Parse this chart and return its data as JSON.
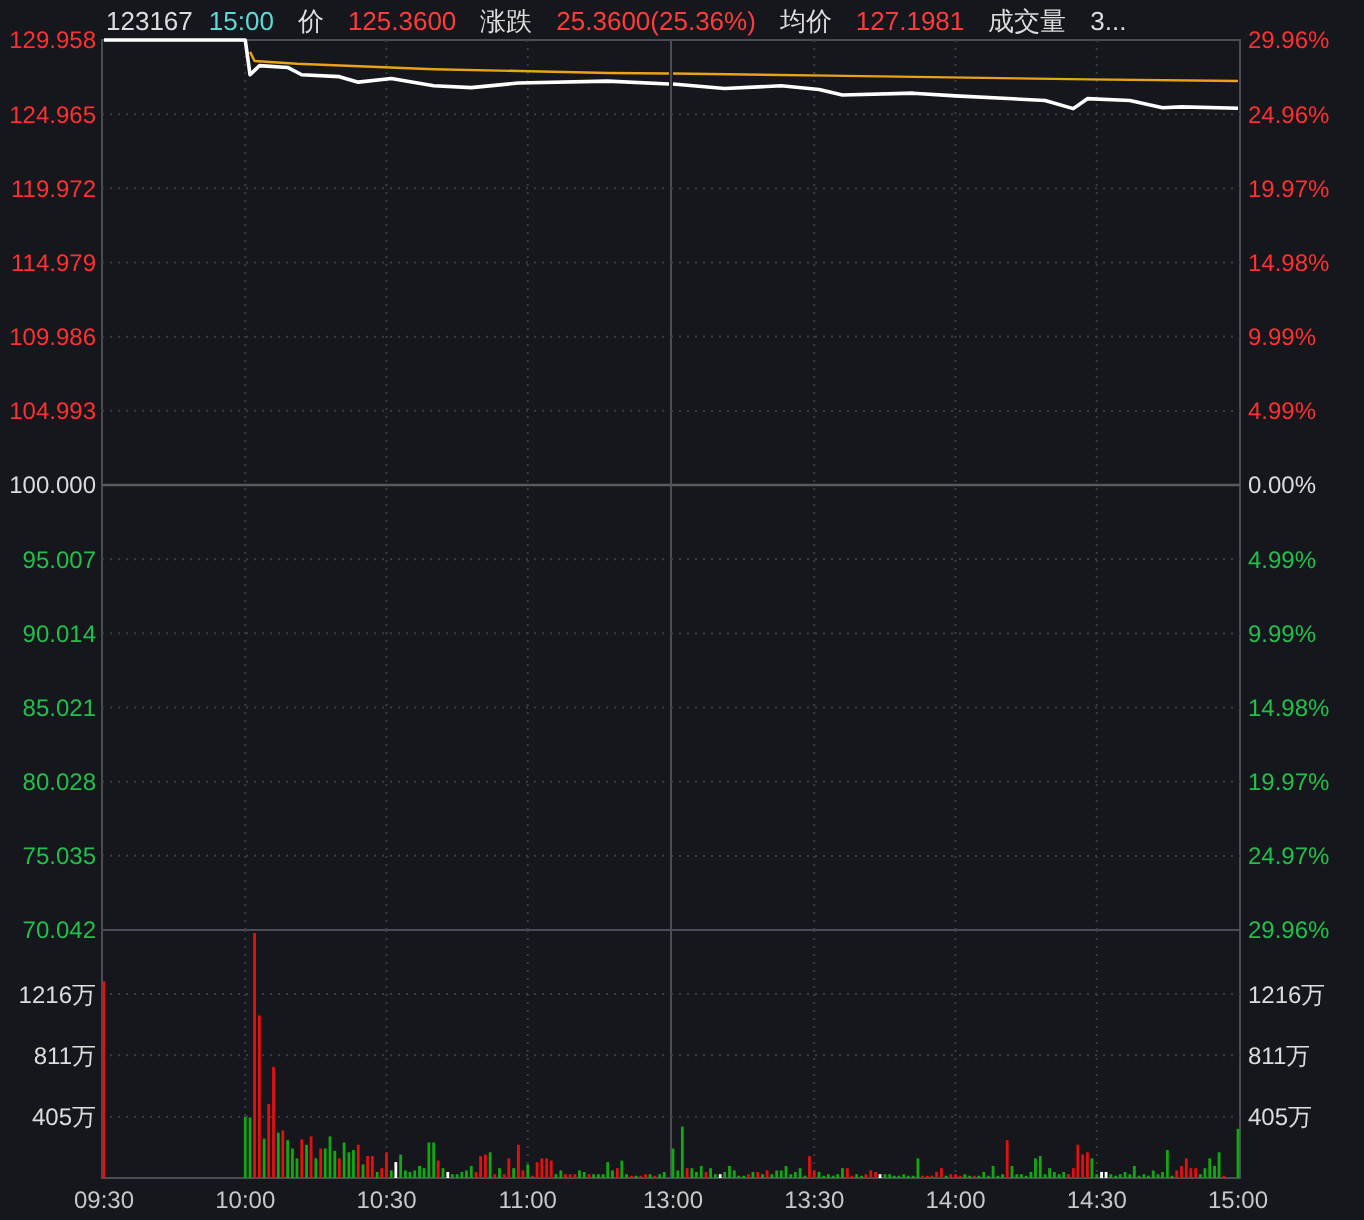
{
  "chart_data": [
    {
      "type": "line",
      "title": "123167",
      "annotations": [
        "15:00",
        "价",
        "125.3600",
        "涨跌",
        "25.3600(25.36%)",
        "均价",
        "127.1981",
        "成交量",
        "3..."
      ],
      "xlim": [
        9.5,
        11.5
      ],
      "xticks": [
        {
          "value": 9.5,
          "label": null
        },
        {
          "value": 10,
          "label": null
        },
        {
          "value": 10.5,
          "label": null
        },
        {
          "value": 11,
          "label": null
        }
      ],
      "ylim": [
        70.042,
        129.958
      ],
      "yticks": [
        70.042,
        75.035,
        80.028,
        85.021,
        90.014,
        95.007,
        {
          "value": 100,
          "label": "100.000"
        },
        104.993,
        109.986,
        114.979,
        119.972,
        124.965,
        129.958
      ],
      "tick_labels": "y",
      "grid": true,
      "ref_lines": [
        {
          "axis": "y",
          "value": 100,
          "color": "#5a5a5a"
        }
      ],
      "series": [
        {
          "color": "#ffffff",
          "x": [
            9.5,
            10,
            10.017,
            10.05,
            10.15,
            10.2,
            10.333,
            10.4,
            10.517,
            10.667,
            10.8,
            10.967,
            11.283,
            11.5
          ],
          "values": [
            129.958,
            129.958,
            127.62,
            128.23,
            128.11,
            127.62,
            127.49,
            127.12,
            127.37,
            126.88,
            126.75,
            127.06,
            127.19,
            127.0
          ]
        },
        {
          "color": "#e8a317",
          "x": [
            10.017,
            10.033,
            10.183,
            10.667,
            11.283,
            11.5
          ],
          "values": [
            129.16,
            128.54,
            128.36,
            127.99,
            127.74,
            127.7
          ]
        }
      ]
    },
    {
      "type": "line",
      "xlim": [
        13,
        15
      ],
      "xticks": [
        {
          "value": 13,
          "label": null
        },
        {
          "value": 13.5,
          "label": null
        },
        {
          "value": 14,
          "label": null
        },
        {
          "value": 14.5,
          "label": null
        },
        {
          "value": 15,
          "label": null
        }
      ],
      "ylim": [
        -29.96,
        29.96
      ],
      "yticks": [
        {
          "value": -29.96,
          "label": "29.96%"
        },
        {
          "value": -24.97,
          "label": "24.97%"
        },
        {
          "value": -19.97,
          "label": "19.97%"
        },
        {
          "value": -14.98,
          "label": "14.98%"
        },
        {
          "value": -9.99,
          "label": "9.99%"
        },
        {
          "value": -4.99,
          "label": "4.99%"
        },
        {
          "value": 0,
          "label": "0.00%"
        },
        {
          "value": 4.99,
          "label": "4.99%"
        },
        {
          "value": 9.99,
          "label": "9.99%"
        },
        {
          "value": 14.98,
          "label": "14.98%"
        },
        {
          "value": 19.97,
          "label": "19.97%"
        },
        {
          "value": 24.96,
          "label": "24.96%"
        },
        {
          "value": 29.96,
          "label": "29.96%"
        }
      ],
      "tick_labels": "y",
      "grid": true,
      "ref_lines": [
        {
          "axis": "y",
          "value": 0,
          "color": "#5a5a5a"
        }
      ],
      "series": [
        {
          "color": "#ffffff",
          "x": [
            13,
            13.183,
            13.383,
            13.517,
            13.6,
            13.85,
            14,
            14.317,
            14.417,
            14.467,
            14.617,
            14.733,
            14.8,
            15
          ],
          "values": [
            27.0,
            26.69,
            26.88,
            26.63,
            26.26,
            26.38,
            26.2,
            25.89,
            25.34,
            26.01,
            25.89,
            25.4,
            25.46,
            25.36
          ]
        },
        {
          "color": "#e8a317",
          "x": [
            13,
            13.55,
            14.467,
            15
          ],
          "values": [
            27.7,
            27.56,
            27.31,
            27.2
          ]
        }
      ]
    },
    {
      "type": "bar",
      "xlim": [
        9.5,
        11.5
      ],
      "xticks": [
        {
          "value": 9.5,
          "label": "09:30"
        },
        {
          "value": 10,
          "label": "10:00"
        },
        {
          "value": 10.5,
          "label": "10:30"
        },
        {
          "value": 11,
          "label": "11:00"
        }
      ],
      "ylim": [
        0,
        1640
      ],
      "yticks": [
        {
          "value": 405,
          "label": "405万"
        },
        {
          "value": 811,
          "label": "811万"
        },
        {
          "value": 1216,
          "label": "1216万"
        }
      ],
      "grid": true,
      "x": [
        9.5,
        10,
        10.017,
        10.033,
        10.05,
        10.067,
        10.083,
        10.1,
        10.117,
        10.133,
        10.15,
        10.167,
        10.183,
        10.2,
        10.217,
        10.233,
        10.25,
        10.267,
        10.283,
        10.3,
        10.317,
        10.333,
        10.35,
        10.367,
        10.383,
        10.4,
        10.417,
        10.433,
        10.45,
        10.467,
        10.483,
        10.5,
        10.517,
        10.533,
        10.55,
        10.567,
        10.583,
        10.6,
        10.617,
        10.633,
        10.65,
        10.667,
        10.683,
        10.7,
        10.717,
        10.733,
        10.75,
        10.767,
        10.783,
        10.8,
        10.817,
        10.833,
        10.85,
        10.867,
        10.883,
        10.9,
        10.917,
        10.933,
        10.95,
        10.967,
        10.983,
        11,
        11.017,
        11.033,
        11.05,
        11.067,
        11.083,
        11.1,
        11.117,
        11.133,
        11.15,
        11.167,
        11.183,
        11.2,
        11.217,
        11.233,
        11.25,
        11.267,
        11.283,
        11.3,
        11.317,
        11.333,
        11.35,
        11.367,
        11.383,
        11.4,
        11.417,
        11.433,
        11.45,
        11.467,
        11.483
      ],
      "values": [
        1300,
        405,
        400,
        1620,
        1075,
        260,
        490,
        735,
        300,
        315,
        250,
        195,
        130,
        255,
        220,
        275,
        130,
        195,
        195,
        275,
        180,
        130,
        235,
        170,
        185,
        220,
        90,
        145,
        145,
        40,
        65,
        170,
        50,
        105,
        155,
        50,
        40,
        50,
        80,
        65,
        235,
        235,
        115,
        65,
        40,
        25,
        25,
        40,
        50,
        80,
        40,
        145,
        155,
        170,
        25,
        65,
        25,
        130,
        65,
        220,
        50,
        90,
        15,
        105,
        130,
        130,
        115,
        25,
        50,
        25,
        25,
        25,
        50,
        40,
        25,
        25,
        25,
        25,
        105,
        50,
        65,
        115,
        25,
        15,
        15,
        15,
        25,
        25,
        15,
        25,
        40
      ],
      "colors": [
        "#e41010",
        "#13a813",
        "#13a813",
        "#e41010",
        "#e41010",
        "#13a813",
        "#e41010",
        "#e41010",
        "#13a813",
        "#e41010",
        "#13a813",
        "#13a813",
        "#13a813",
        "#e41010",
        "#13a813",
        "#e41010",
        "#13a813",
        "#e41010",
        "#13a813",
        "#13a813",
        "#13a813",
        "#e41010",
        "#13a813",
        "#13a813",
        "#13a813",
        "#e41010",
        "#13a813",
        "#e41010",
        "#e41010",
        "#13a813",
        "#e41010",
        "#e41010",
        "#13a813",
        "#ffffff",
        "#13a813",
        "#13a813",
        "#13a813",
        "#13a813",
        "#13a813",
        "#13a813",
        "#13a813",
        "#13a813",
        "#e41010",
        "#13a813",
        "#ffffff",
        "#13a813",
        "#13a813",
        "#13a813",
        "#13a813",
        "#13a813",
        "#e41010",
        "#e41010",
        "#e41010",
        "#13a813",
        "#e41010",
        "#13a813",
        "#e41010",
        "#e41010",
        "#13a813",
        "#e41010",
        "#e41010",
        "#13a813",
        "#e41010",
        "#e41010",
        "#e41010",
        "#e41010",
        "#e41010",
        "#13a813",
        "#13a813",
        "#e41010",
        "#e41010",
        "#e41010",
        "#13a813",
        "#13a813",
        "#e41010",
        "#13a813",
        "#13a813",
        "#13a813",
        "#13a813",
        "#13a813",
        "#e41010",
        "#13a813",
        "#13a813",
        "#e41010",
        "#13a813",
        "#e41010",
        "#e41010",
        "#13a813",
        "#e41010",
        "#13a813",
        "#13a813"
      ]
    },
    {
      "type": "bar",
      "xlim": [
        13,
        15
      ],
      "xticks": [
        {
          "value": 13,
          "label": "13:00"
        },
        {
          "value": 13.5,
          "label": "13:30"
        },
        {
          "value": 14,
          "label": "14:00"
        },
        {
          "value": 14.5,
          "label": "14:30"
        },
        {
          "value": 15,
          "label": "15:00"
        }
      ],
      "ylim": [
        0,
        1640
      ],
      "yticks": [
        {
          "value": 405,
          "label": "405万"
        },
        {
          "value": 811,
          "label": "811万"
        },
        {
          "value": 1216,
          "label": "1216万"
        }
      ],
      "grid": true,
      "x": [
        13,
        13.017,
        13.033,
        13.05,
        13.067,
        13.083,
        13.1,
        13.117,
        13.133,
        13.15,
        13.167,
        13.183,
        13.2,
        13.217,
        13.233,
        13.25,
        13.267,
        13.283,
        13.3,
        13.317,
        13.333,
        13.35,
        13.367,
        13.383,
        13.4,
        13.417,
        13.433,
        13.45,
        13.467,
        13.483,
        13.5,
        13.517,
        13.533,
        13.55,
        13.567,
        13.583,
        13.6,
        13.617,
        13.633,
        13.65,
        13.667,
        13.683,
        13.7,
        13.717,
        13.733,
        13.75,
        13.767,
        13.783,
        13.8,
        13.817,
        13.833,
        13.85,
        13.867,
        13.883,
        13.9,
        13.917,
        13.933,
        13.95,
        13.967,
        13.983,
        14,
        14.017,
        14.033,
        14.05,
        14.067,
        14.083,
        14.1,
        14.117,
        14.133,
        14.15,
        14.167,
        14.183,
        14.2,
        14.217,
        14.233,
        14.25,
        14.267,
        14.283,
        14.3,
        14.317,
        14.333,
        14.35,
        14.367,
        14.383,
        14.4,
        14.417,
        14.433,
        14.45,
        14.467,
        14.483,
        14.5,
        14.517,
        14.533,
        14.55,
        14.567,
        14.583,
        14.6,
        14.617,
        14.633,
        14.65,
        14.667,
        14.683,
        14.7,
        14.717,
        14.733,
        14.75,
        14.767,
        14.783,
        14.8,
        14.817,
        14.833,
        14.85,
        14.867,
        14.883,
        14.9,
        14.917,
        14.933,
        14.95,
        15
      ],
      "values": [
        195,
        50,
        340,
        65,
        65,
        40,
        80,
        40,
        65,
        25,
        25,
        40,
        80,
        50,
        15,
        15,
        25,
        40,
        40,
        25,
        50,
        25,
        50,
        50,
        80,
        25,
        40,
        65,
        15,
        145,
        50,
        40,
        15,
        25,
        15,
        25,
        65,
        65,
        15,
        25,
        15,
        25,
        50,
        40,
        25,
        25,
        25,
        15,
        15,
        25,
        15,
        15,
        130,
        15,
        15,
        15,
        40,
        65,
        15,
        25,
        25,
        15,
        25,
        15,
        15,
        15,
        40,
        15,
        80,
        15,
        25,
        250,
        80,
        25,
        25,
        15,
        40,
        130,
        145,
        25,
        65,
        40,
        25,
        40,
        25,
        65,
        220,
        155,
        170,
        130,
        25,
        40,
        40,
        25,
        15,
        25,
        40,
        25,
        80,
        15,
        25,
        15,
        50,
        25,
        40,
        185,
        15,
        50,
        80,
        130,
        65,
        65,
        25,
        65,
        130,
        80,
        170,
        15,
        325
      ],
      "colors": [
        "#13a813",
        "#13a813",
        "#13a813",
        "#e41010",
        "#13a813",
        "#13a813",
        "#13a813",
        "#e41010",
        "#13a813",
        "#13a813",
        "#ffffff",
        "#13a813",
        "#13a813",
        "#13a813",
        "#13a813",
        "#13a813",
        "#e41010",
        "#13a813",
        "#e41010",
        "#13a813",
        "#e41010",
        "#13a813",
        "#13a813",
        "#13a813",
        "#13a813",
        "#13a813",
        "#13a813",
        "#13a813",
        "#13a813",
        "#e41010",
        "#e41010",
        "#13a813",
        "#13a813",
        "#13a813",
        "#13a813",
        "#13a813",
        "#13a813",
        "#e41010",
        "#e41010",
        "#13a813",
        "#13a813",
        "#e41010",
        "#e41010",
        "#e41010",
        "#ffffff",
        "#13a813",
        "#13a813",
        "#13a813",
        "#13a813",
        "#13a813",
        "#13a813",
        "#13a813",
        "#13a813",
        "#e41010",
        "#e41010",
        "#e41010",
        "#e41010",
        "#e41010",
        "#13a813",
        "#e41010",
        "#e41010",
        "#e41010",
        "#13a813",
        "#13a813",
        "#e41010",
        "#13a813",
        "#13a813",
        "#13a813",
        "#13a813",
        "#13a813",
        "#13a813",
        "#e41010",
        "#13a813",
        "#13a813",
        "#13a813",
        "#13a813",
        "#13a813",
        "#13a813",
        "#13a813",
        "#13a813",
        "#13a813",
        "#13a813",
        "#13a813",
        "#13a813",
        "#e41010",
        "#e41010",
        "#e41010",
        "#e41010",
        "#e41010",
        "#13a813",
        "#13a813",
        "#ffffff",
        "#ffffff",
        "#13a813",
        "#13a813",
        "#13a813",
        "#13a813",
        "#13a813",
        "#13a813",
        "#13a813",
        "#13a813",
        "#13a813",
        "#13a813",
        "#13a813",
        "#13a813",
        "#13a813",
        "#13a813",
        "#e41010",
        "#e41010",
        "#e41010",
        "#e41010",
        "#e41010",
        "#13a813",
        "#13a813",
        "#13a813",
        "#13a813",
        "#13a813",
        "#e41010",
        "#13a813"
      ]
    }
  ]
}
